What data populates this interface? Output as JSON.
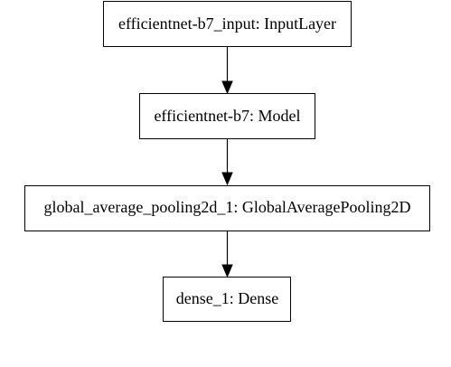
{
  "diagram": {
    "type": "keras-model-plot",
    "nodes": [
      {
        "id": "input",
        "label": "efficientnet-b7_input: InputLayer"
      },
      {
        "id": "model",
        "label": "efficientnet-b7: Model"
      },
      {
        "id": "gap",
        "label": "global_average_pooling2d_1: GlobalAveragePooling2D"
      },
      {
        "id": "dense",
        "label": "dense_1: Dense"
      }
    ],
    "edges": [
      {
        "from": "input",
        "to": "model"
      },
      {
        "from": "model",
        "to": "gap"
      },
      {
        "from": "gap",
        "to": "dense"
      }
    ]
  }
}
